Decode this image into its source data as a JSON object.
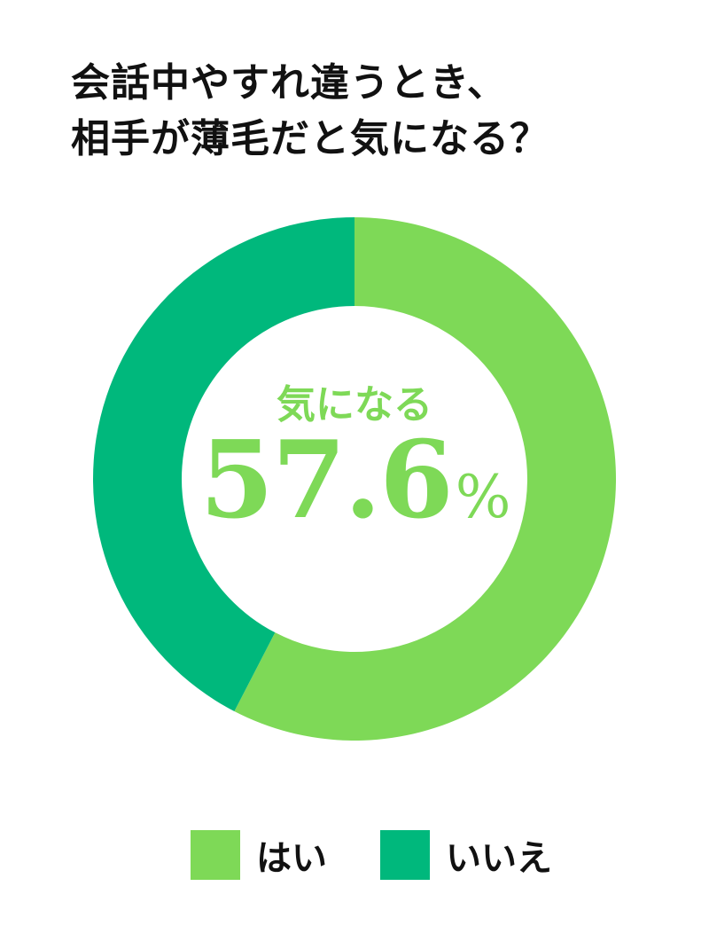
{
  "title_lines": [
    "会話中やすれ違うとき、",
    "相手が薄毛だと気になる？"
  ],
  "chart_data": {
    "type": "pie",
    "variant": "donut",
    "title": "会話中やすれ違うとき、相手が薄毛だと気になる？",
    "categories": [
      "はい",
      "いいえ"
    ],
    "values": [
      57.6,
      42.4
    ],
    "unit": "%",
    "colors": [
      "#7ed957",
      "#00b87c"
    ],
    "start": "top",
    "direction": "clockwise",
    "center_label": "気になる",
    "center_value": "57.6",
    "center_unit": "%",
    "legend_position": "bottom"
  }
}
